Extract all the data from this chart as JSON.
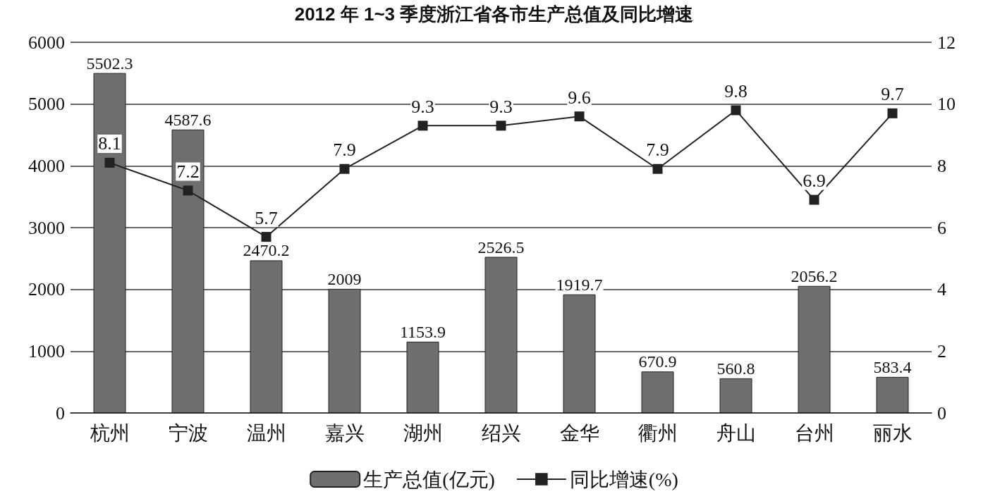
{
  "chart_data": {
    "type": "bar",
    "title": "2012 年 1~3 季度浙江省各市生产总值及同比增速",
    "categories": [
      "杭州",
      "宁波",
      "温州",
      "嘉兴",
      "湖州",
      "绍兴",
      "金华",
      "衢州",
      "舟山",
      "台州",
      "丽水"
    ],
    "series": [
      {
        "name": "生产总值(亿元)",
        "color": "#6e6e6e",
        "values": [
          5502.3,
          4587.6,
          2470.2,
          2009,
          1153.9,
          2526.5,
          1919.7,
          670.9,
          560.8,
          2056.2,
          583.4
        ]
      },
      {
        "name": "同比增速(%)",
        "type": "line",
        "axis": "y2",
        "color": "#222222",
        "values": [
          8.1,
          7.2,
          5.7,
          7.9,
          9.3,
          9.3,
          9.6,
          7.9,
          9.8,
          6.9,
          9.7
        ]
      }
    ],
    "ylim": [
      0,
      6000
    ],
    "yticks": [
      0,
      1000,
      2000,
      3000,
      4000,
      5000,
      6000
    ],
    "y2lim": [
      0,
      12
    ],
    "y2ticks": [
      0,
      2,
      4,
      6,
      8,
      10,
      12
    ],
    "grid": "y",
    "legend": "bottom",
    "marker": "square",
    "line_style": "solid",
    "data_labels": true
  }
}
